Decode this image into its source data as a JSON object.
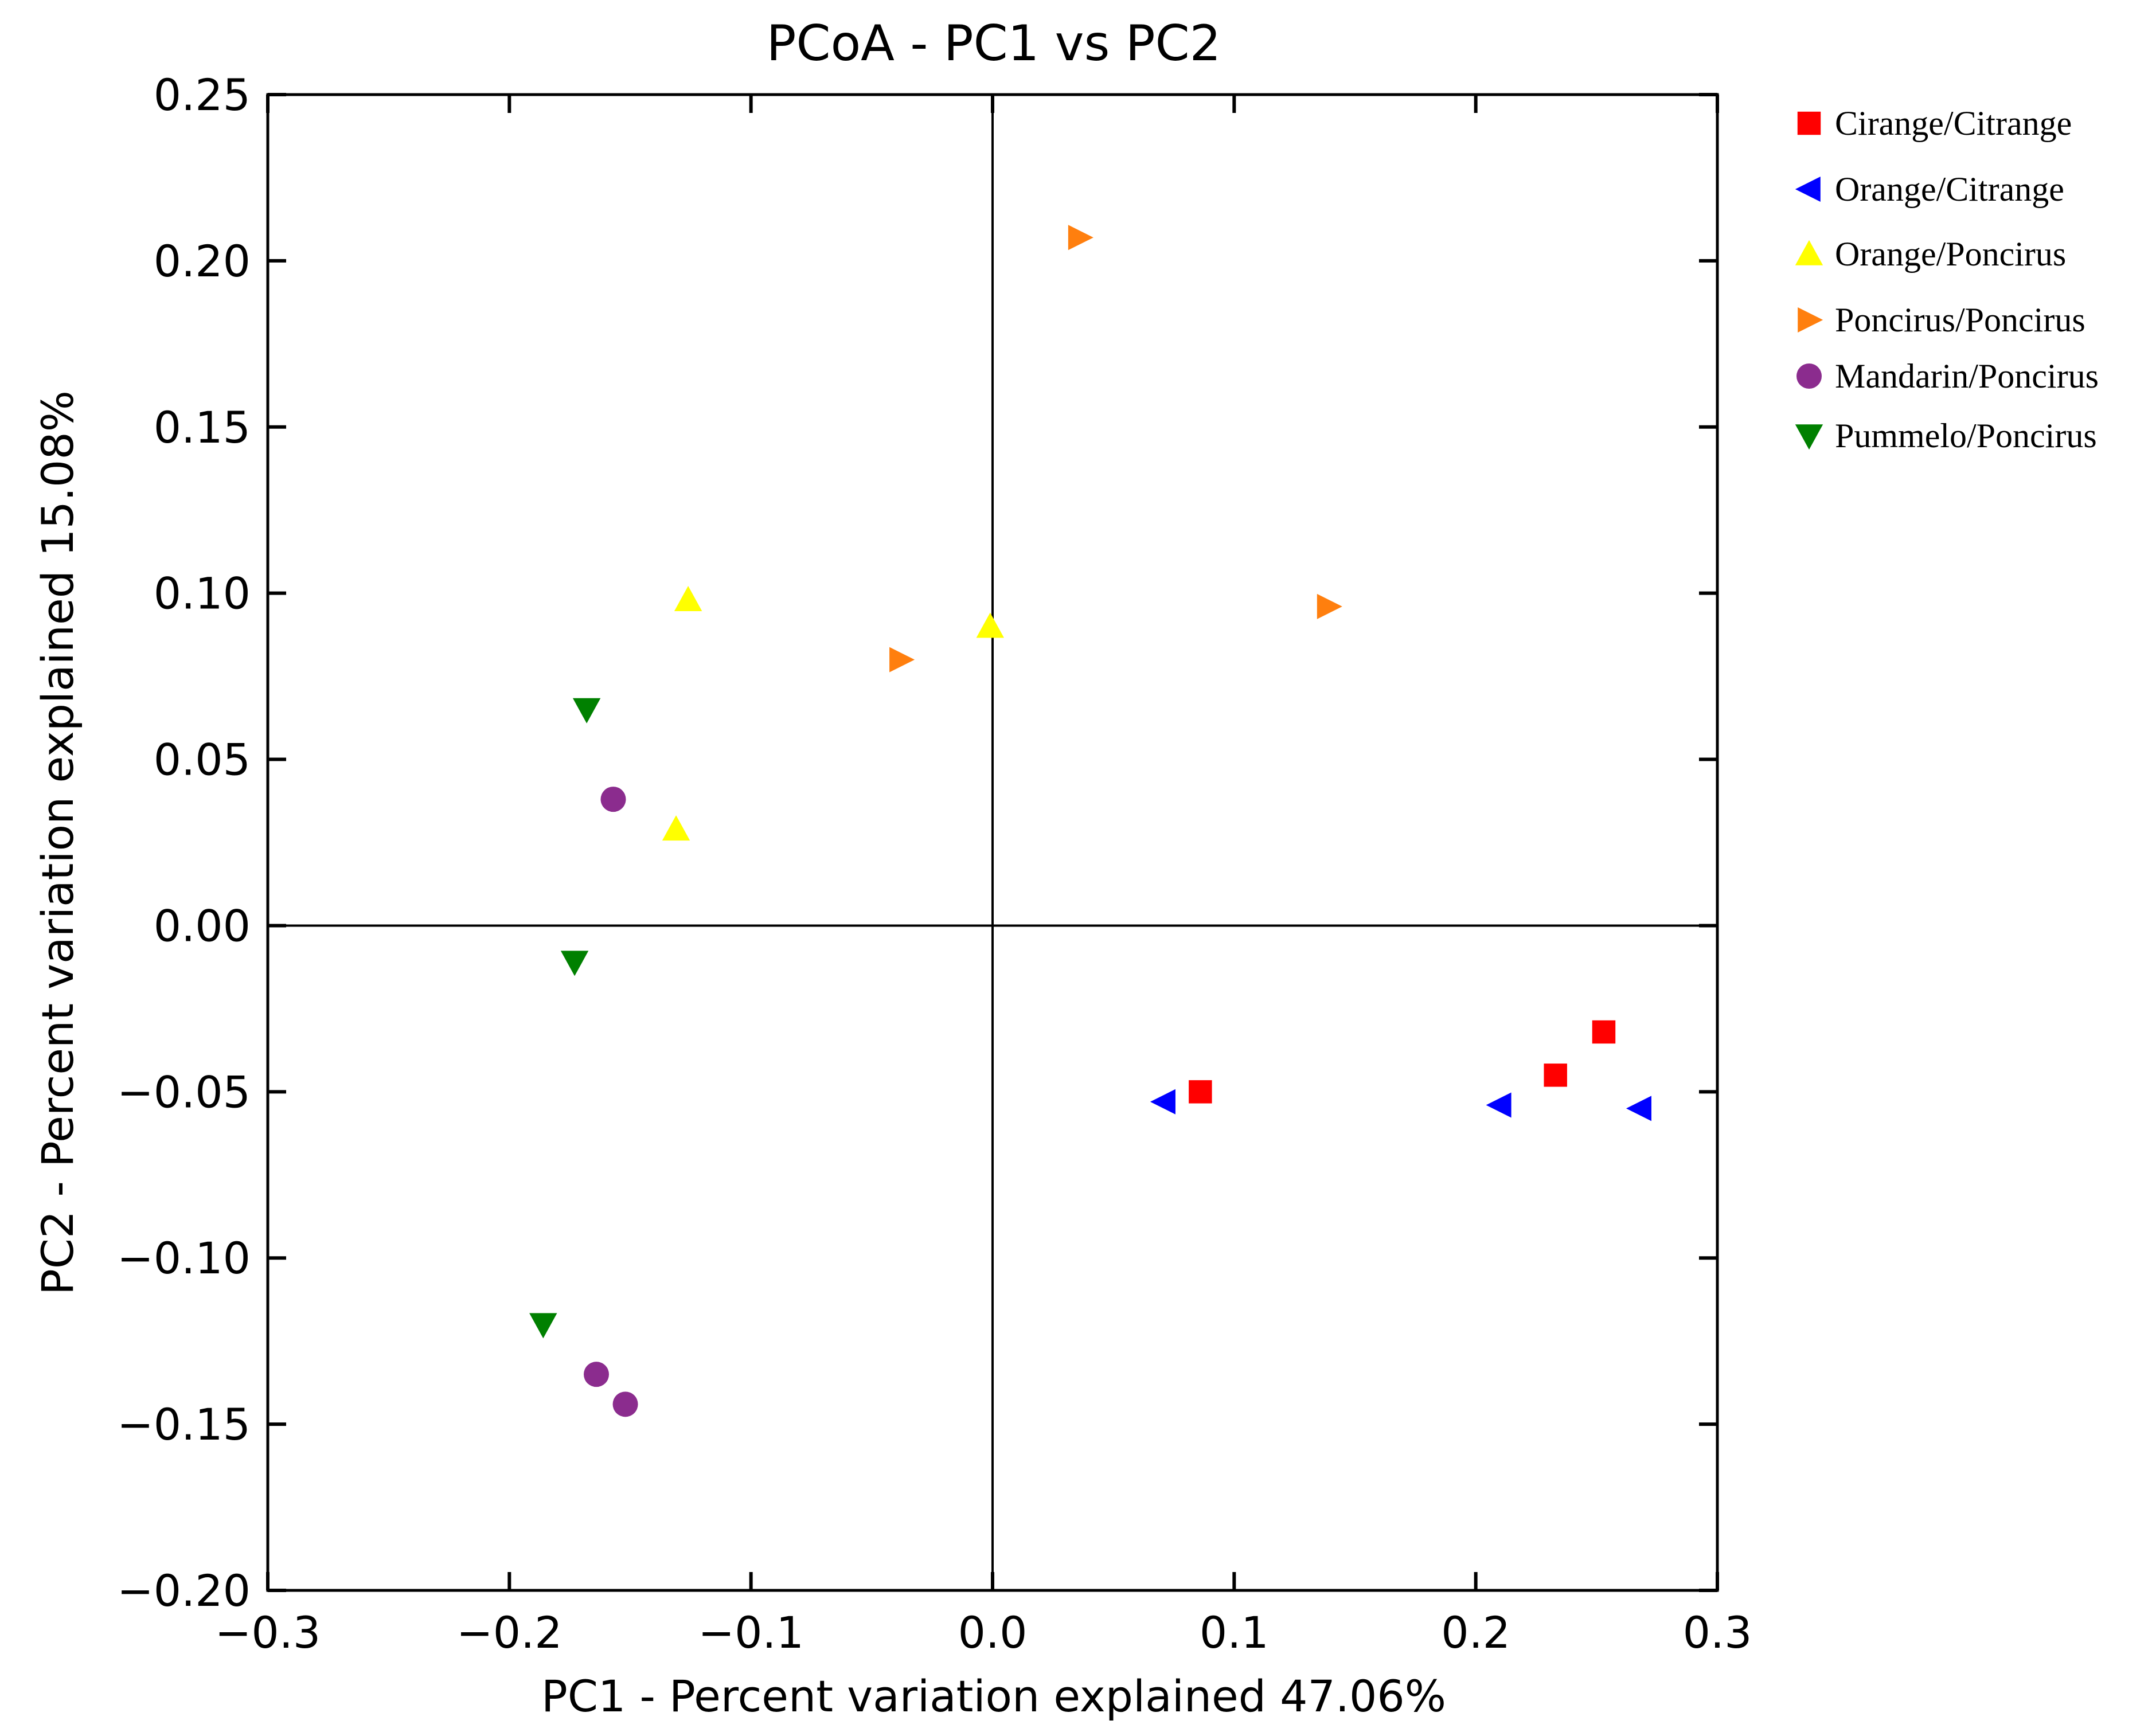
{
  "chart_data": {
    "type": "scatter",
    "title": "PCoA - PC1 vs PC2",
    "xlabel": "PC1 - Percent variation explained 47.06%",
    "ylabel": "PC2 - Percent variation explained 15.08%",
    "xlim": [
      -0.3,
      0.3
    ],
    "ylim": [
      -0.2,
      0.25
    ],
    "xticks": [
      -0.3,
      -0.2,
      -0.1,
      0.0,
      0.1,
      0.2,
      0.3
    ],
    "xtick_labels": [
      "−0.3",
      "−0.2",
      "−0.1",
      "0.0",
      "0.1",
      "0.2",
      "0.3"
    ],
    "yticks": [
      -0.2,
      -0.15,
      -0.1,
      -0.05,
      0.0,
      0.05,
      0.1,
      0.15,
      0.2,
      0.25
    ],
    "ytick_labels": [
      "−0.20",
      "−0.15",
      "−0.10",
      "−0.05",
      "0.00",
      "0.05",
      "0.10",
      "0.15",
      "0.20",
      "0.25"
    ],
    "reference_lines": {
      "x": 0.0,
      "y": 0.0
    },
    "grid": false,
    "legend_position": "outside-right-top",
    "series": [
      {
        "name": "Cirange/Citrange",
        "color": "#ff0000",
        "marker": "square",
        "points": [
          {
            "x": 0.086,
            "y": -0.05
          },
          {
            "x": 0.233,
            "y": -0.045
          },
          {
            "x": 0.253,
            "y": -0.032
          }
        ]
      },
      {
        "name": "Orange/Citrange",
        "color": "#0000ff",
        "marker": "triangle-left",
        "points": [
          {
            "x": 0.071,
            "y": -0.053
          },
          {
            "x": 0.21,
            "y": -0.054
          },
          {
            "x": 0.268,
            "y": -0.055
          }
        ]
      },
      {
        "name": "Orange/Poncirus",
        "color": "#ffff00",
        "marker": "triangle-up",
        "points": [
          {
            "x": -0.126,
            "y": 0.098
          },
          {
            "x": -0.001,
            "y": 0.09
          },
          {
            "x": -0.131,
            "y": 0.029
          }
        ]
      },
      {
        "name": "Poncirus/Poncirus",
        "color": "#ff7f0e",
        "marker": "triangle-right",
        "points": [
          {
            "x": 0.036,
            "y": 0.207
          },
          {
            "x": 0.139,
            "y": 0.096
          },
          {
            "x": -0.038,
            "y": 0.08
          }
        ]
      },
      {
        "name": "Mandarin/Poncirus",
        "color": "#8b2c8e",
        "marker": "circle",
        "points": [
          {
            "x": -0.157,
            "y": 0.038
          },
          {
            "x": -0.164,
            "y": -0.135
          },
          {
            "x": -0.152,
            "y": -0.144
          }
        ]
      },
      {
        "name": "Pummelo/Poncirus",
        "color": "#008000",
        "marker": "triangle-down",
        "points": [
          {
            "x": -0.168,
            "y": 0.065
          },
          {
            "x": -0.173,
            "y": -0.011
          },
          {
            "x": -0.186,
            "y": -0.12
          }
        ]
      }
    ]
  }
}
